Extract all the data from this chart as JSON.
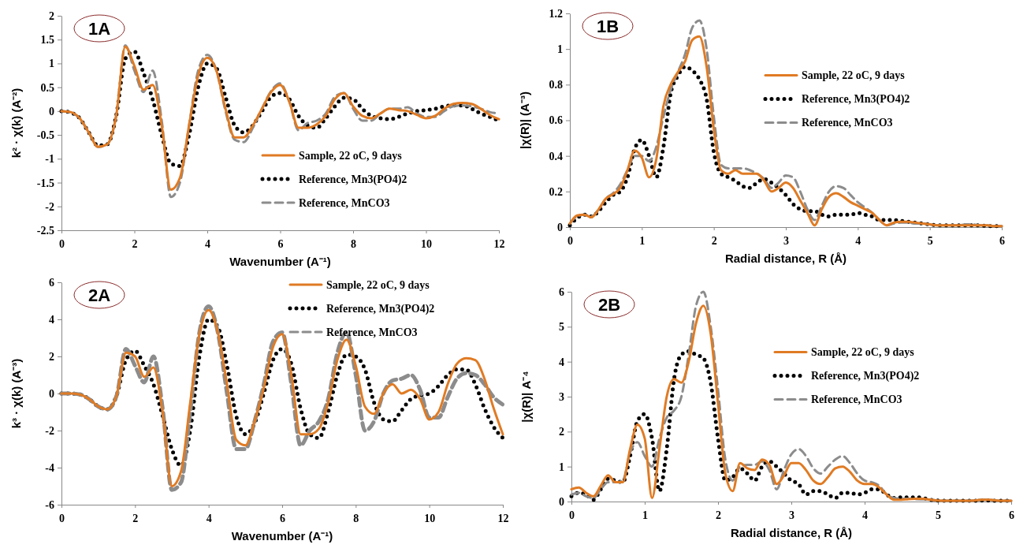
{
  "chart_data": [
    {
      "type": "line",
      "title": "1A",
      "xlabel": "Wavenumber (A⁻¹)",
      "ylabel": "k² · χ(k) (A⁻²)",
      "xlim": [
        0,
        12
      ],
      "xticks": [
        0,
        2,
        4,
        6,
        8,
        10,
        12
      ],
      "ylim": [
        -2.5,
        2
      ],
      "yticks": [
        -2.5,
        -2,
        -1.5,
        -1,
        -0.5,
        0,
        0.5,
        1,
        1.5,
        2
      ],
      "grid": false,
      "legend": "bottom right",
      "x": [
        0,
        0.25,
        0.5,
        0.75,
        1,
        1.25,
        1.5,
        1.75,
        2,
        2.25,
        2.5,
        2.75,
        3,
        3.25,
        3.5,
        3.75,
        4,
        4.25,
        4.5,
        4.75,
        5,
        5.25,
        5.5,
        5.75,
        6,
        6.25,
        6.5,
        6.75,
        7,
        7.25,
        7.5,
        7.75,
        8,
        8.25,
        8.5,
        8.75,
        9,
        9.25,
        9.5,
        9.75,
        10,
        10.25,
        10.5,
        10.75,
        11,
        11.25,
        11.5,
        11.75,
        12
      ],
      "series": [
        {
          "name": "Sample, 22 oC, 9 days",
          "color": "#e07b24",
          "line_style": "solid",
          "values": [
            0,
            -0.02,
            -0.15,
            -0.45,
            -0.75,
            -0.7,
            -0.1,
            1.35,
            0.95,
            0.45,
            0.55,
            -0.3,
            -1.65,
            -1.4,
            -0.3,
            0.75,
            1.12,
            0.85,
            0.05,
            -0.55,
            -0.55,
            -0.3,
            0.05,
            0.4,
            0.55,
            0.2,
            -0.35,
            -0.35,
            -0.28,
            -0.1,
            0.25,
            0.38,
            0.1,
            -0.1,
            -0.15,
            -0.05,
            0.05,
            0.02,
            0,
            -0.08,
            -0.15,
            -0.1,
            0.05,
            0.15,
            0.17,
            0.15,
            0.05,
            -0.08,
            -0.17
          ]
        },
        {
          "name": "Reference, Mn3(PO4)2",
          "color": "#000000",
          "line_style": "dotted",
          "values": [
            0,
            -0.03,
            -0.15,
            -0.45,
            -0.72,
            -0.7,
            -0.1,
            1.1,
            1.25,
            0.8,
            0.25,
            -0.5,
            -1.1,
            -1.15,
            -0.5,
            0.5,
            1,
            0.9,
            0.3,
            -0.3,
            -0.45,
            -0.3,
            0,
            0.3,
            0.38,
            0.25,
            -0.1,
            -0.3,
            -0.35,
            -0.15,
            0.1,
            0.28,
            0.25,
            0.05,
            -0.1,
            -0.15,
            -0.17,
            -0.12,
            -0.05,
            0,
            0.02,
            0.05,
            0.1,
            0.12,
            0.12,
            0.05,
            -0.05,
            -0.12,
            -0.2
          ]
        },
        {
          "name": "Reference, MnCO3",
          "color": "#8c8c8c",
          "line_style": "dashed",
          "values": [
            0,
            -0.03,
            -0.15,
            -0.45,
            -0.75,
            -0.7,
            -0.1,
            1.38,
            0.85,
            0.4,
            0.85,
            -0.2,
            -1.8,
            -1.5,
            -0.3,
            0.85,
            1.18,
            0.85,
            0,
            -0.6,
            -0.65,
            -0.35,
            0.05,
            0.42,
            0.58,
            0.2,
            -0.4,
            -0.25,
            -0.2,
            -0.05,
            0.3,
            0.38,
            0.05,
            -0.2,
            -0.2,
            -0.05,
            0.05,
            0.05,
            0.08,
            -0.05,
            -0.12,
            -0.12,
            0,
            0.1,
            0.12,
            0.1,
            0.05,
            -0.02,
            -0.05
          ]
        }
      ]
    },
    {
      "type": "line",
      "title": "1B",
      "xlabel": "Radial distance, R (Å)",
      "ylabel": "|χ(R)| (A⁻³)",
      "xlim": [
        0,
        6
      ],
      "xticks": [
        0,
        1,
        2,
        3,
        4,
        5,
        6
      ],
      "ylim": [
        0,
        1.2
      ],
      "yticks": [
        0,
        0.2,
        0.4,
        0.6,
        0.8,
        1,
        1.2
      ],
      "grid": false,
      "legend": "right",
      "x": [
        0,
        0.1,
        0.2,
        0.3,
        0.4,
        0.5,
        0.6,
        0.7,
        0.8,
        0.9,
        1,
        1.1,
        1.2,
        1.3,
        1.4,
        1.5,
        1.6,
        1.7,
        1.8,
        1.9,
        2,
        2.1,
        2.2,
        2.3,
        2.4,
        2.5,
        2.6,
        2.7,
        2.8,
        2.9,
        3,
        3.1,
        3.2,
        3.3,
        3.4,
        3.5,
        3.6,
        3.7,
        3.8,
        3.9,
        4,
        4.1,
        4.2,
        4.3,
        4.4,
        4.5,
        4.6,
        4.7,
        4.8,
        4.9,
        5,
        5.1,
        5.2,
        5.3,
        5.4,
        5.5,
        5.6,
        5.7,
        5.8,
        5.9,
        6
      ],
      "series": [
        {
          "name": "Sample, 22 oC, 9 days",
          "color": "#e07b24",
          "line_style": "solid",
          "values": [
            0.02,
            0.065,
            0.07,
            0.055,
            0.1,
            0.16,
            0.185,
            0.22,
            0.32,
            0.43,
            0.39,
            0.28,
            0.38,
            0.68,
            0.8,
            0.87,
            0.93,
            1.05,
            1.07,
            0.9,
            0.55,
            0.32,
            0.3,
            0.32,
            0.3,
            0.3,
            0.3,
            0.26,
            0.2,
            0.22,
            0.25,
            0.22,
            0.15,
            0.08,
            0.01,
            0.1,
            0.17,
            0.19,
            0.17,
            0.14,
            0.12,
            0.1,
            0.08,
            0.04,
            0.01,
            0.025,
            0.03,
            0.03,
            0.025,
            0.02,
            0.015,
            0.01,
            0.01,
            0.01,
            0.01,
            0.01,
            0.01,
            0.01,
            0.01,
            0.005,
            0.005
          ]
        },
        {
          "name": "Reference, Mn3(PO4)2",
          "color": "#000000",
          "line_style": "dotted",
          "values": [
            0.01,
            0.05,
            0.07,
            0.06,
            0.09,
            0.14,
            0.18,
            0.2,
            0.28,
            0.44,
            0.49,
            0.4,
            0.28,
            0.45,
            0.75,
            0.85,
            0.9,
            0.88,
            0.83,
            0.72,
            0.42,
            0.3,
            0.28,
            0.26,
            0.23,
            0.22,
            0.25,
            0.27,
            0.25,
            0.22,
            0.18,
            0.13,
            0.1,
            0.09,
            0.09,
            0.07,
            0.06,
            0.07,
            0.07,
            0.07,
            0.08,
            0.07,
            0.06,
            0.04,
            0.04,
            0.04,
            0.035,
            0.03,
            0.025,
            0.02,
            0.015,
            0.01,
            0.01,
            0.01,
            0.01,
            0.01,
            0.01,
            0.01,
            0.005,
            0.005,
            0.005
          ]
        },
        {
          "name": "Reference, MnCO3",
          "color": "#8c8c8c",
          "line_style": "dashed",
          "values": [
            0.02,
            0.06,
            0.07,
            0.06,
            0.1,
            0.16,
            0.19,
            0.24,
            0.32,
            0.4,
            0.4,
            0.37,
            0.45,
            0.62,
            0.77,
            0.87,
            0.97,
            1.12,
            1.16,
            1,
            0.62,
            0.35,
            0.33,
            0.33,
            0.33,
            0.32,
            0.3,
            0.27,
            0.22,
            0.25,
            0.29,
            0.28,
            0.2,
            0.1,
            0.04,
            0.12,
            0.2,
            0.23,
            0.22,
            0.18,
            0.14,
            0.11,
            0.08,
            0.04,
            0.01,
            0.02,
            0.025,
            0.025,
            0.02,
            0.02,
            0.015,
            0.01,
            0.01,
            0.01,
            0.01,
            0.015,
            0.015,
            0.01,
            0.01,
            0.005,
            0.005
          ]
        }
      ]
    },
    {
      "type": "line",
      "title": "2A",
      "xlabel": "Wavenumber (A⁻¹)",
      "ylabel": "k³ · χ(k) (A⁻³)",
      "xlim": [
        0,
        12
      ],
      "xticks": [
        0,
        2,
        4,
        6,
        8,
        10,
        12
      ],
      "ylim": [
        -6,
        6
      ],
      "yticks": [
        -6,
        -4,
        -2,
        0,
        2,
        4,
        6
      ],
      "grid": false,
      "legend": "top right",
      "x": [
        0,
        0.25,
        0.5,
        0.75,
        1,
        1.25,
        1.5,
        1.75,
        2,
        2.25,
        2.5,
        2.75,
        3,
        3.25,
        3.5,
        3.75,
        4,
        4.25,
        4.5,
        4.75,
        5,
        5.25,
        5.5,
        5.75,
        6,
        6.25,
        6.5,
        6.75,
        7,
        7.25,
        7.5,
        7.75,
        8,
        8.25,
        8.5,
        8.75,
        9,
        9.25,
        9.5,
        9.75,
        10,
        10.25,
        10.5,
        10.75,
        11,
        11.25,
        11.5,
        11.75,
        12
      ],
      "series": [
        {
          "name": "Sample, 22 oC, 9 days",
          "color": "#e07b24",
          "line_style": "solid",
          "values": [
            0,
            0,
            -0.05,
            -0.3,
            -0.7,
            -0.85,
            -0.1,
            2.2,
            2,
            0.9,
            1.4,
            -1,
            -5,
            -4.2,
            -0.5,
            3.2,
            4.5,
            3.3,
            0.5,
            -2.5,
            -2.8,
            -1.5,
            0.3,
            2.5,
            3.2,
            1,
            -2.2,
            -2.2,
            -1.9,
            -0.5,
            1.8,
            2.9,
            1.5,
            -0.7,
            -1.1,
            0,
            0.5,
            0,
            0.2,
            -0.3,
            -1.4,
            -1,
            0.5,
            1.6,
            1.9,
            1.8,
            0.8,
            -0.8,
            -2.2
          ]
        },
        {
          "name": "Reference, Mn3(PO4)2",
          "color": "#000000",
          "line_style": "dotted",
          "values": [
            0,
            0,
            -0.05,
            -0.3,
            -0.7,
            -0.85,
            -0.1,
            1.8,
            2.3,
            1.5,
            0.5,
            -1.2,
            -3,
            -3.9,
            -2,
            2,
            4,
            3.6,
            1.5,
            -1.2,
            -2.2,
            -1.6,
            0,
            1.8,
            2.4,
            1.6,
            -0.8,
            -2.2,
            -2.4,
            -1,
            1,
            2.1,
            2,
            1.3,
            -0.5,
            -1.4,
            -1.5,
            -0.9,
            -0.3,
            -0.1,
            0,
            0.4,
            1,
            1.3,
            1.3,
            0.5,
            -0.8,
            -1.8,
            -2.4
          ]
        },
        {
          "name": "Reference, MnCO3",
          "color": "#8c8c8c",
          "line_style": "dashed",
          "values": [
            0,
            0,
            -0.05,
            -0.3,
            -0.7,
            -0.85,
            -0.1,
            2.4,
            1.5,
            0.6,
            2,
            -0.8,
            -5.2,
            -4.8,
            -1,
            3.3,
            4.7,
            3.3,
            0,
            -3,
            -3,
            -1.5,
            0.5,
            2.8,
            3.3,
            0.5,
            -2.8,
            -2,
            -1.5,
            -0.3,
            2.2,
            3.3,
            1,
            -2,
            -1.5,
            0,
            0.7,
            0.8,
            1,
            0.2,
            -1.3,
            -1.3,
            -0.2,
            0.8,
            1.1,
            1,
            0.5,
            -0.2,
            -0.6
          ]
        }
      ]
    },
    {
      "type": "line",
      "title": "2B",
      "xlabel": "Radial distance, R (Å)",
      "ylabel": "|χ(R)| A⁻⁴",
      "xlim": [
        0,
        6
      ],
      "xticks": [
        0,
        1,
        2,
        3,
        4,
        5,
        6
      ],
      "ylim": [
        0,
        6
      ],
      "yticks": [
        0,
        1,
        2,
        3,
        4,
        5,
        6
      ],
      "grid": false,
      "legend": "right",
      "x": [
        0,
        0.1,
        0.2,
        0.3,
        0.4,
        0.5,
        0.6,
        0.7,
        0.8,
        0.9,
        1,
        1.1,
        1.2,
        1.3,
        1.4,
        1.5,
        1.6,
        1.7,
        1.8,
        1.9,
        2,
        2.1,
        2.2,
        2.3,
        2.4,
        2.5,
        2.6,
        2.7,
        2.8,
        2.9,
        3,
        3.1,
        3.2,
        3.3,
        3.4,
        3.5,
        3.6,
        3.7,
        3.8,
        3.9,
        4,
        4.1,
        4.2,
        4.3,
        4.4,
        4.5,
        4.6,
        4.7,
        4.8,
        4.9,
        5,
        5.1,
        5.2,
        5.3,
        5.4,
        5.5,
        5.6,
        5.7,
        5.8,
        5.9,
        6
      ],
      "series": [
        {
          "name": "Sample, 22 oC, 9 days",
          "color": "#e07b24",
          "line_style": "solid",
          "values": [
            0.35,
            0.4,
            0.25,
            0.15,
            0.45,
            0.75,
            0.55,
            0.55,
            1.5,
            2.2,
            1.8,
            0.1,
            1.5,
            3,
            3.5,
            3.4,
            4,
            5.1,
            5.6,
            4.8,
            2.8,
            0.8,
            0.3,
            1.1,
            0.95,
            0.9,
            1.2,
            1.05,
            0.5,
            0.75,
            1.1,
            1.1,
            0.9,
            0.6,
            0.5,
            0.7,
            0.95,
            1,
            0.85,
            0.6,
            0.5,
            0.5,
            0.4,
            0.2,
            0.05,
            0.05,
            0.07,
            0.08,
            0.08,
            0.05,
            0.03,
            0.02,
            0.02,
            0.02,
            0.02,
            0.03,
            0.05,
            0.05,
            0.03,
            0.02,
            0.02
          ]
        },
        {
          "name": "Reference, Mn3(PO4)2",
          "color": "#000000",
          "line_style": "dotted",
          "values": [
            0.15,
            0.25,
            0.2,
            0.05,
            0.35,
            0.65,
            0.6,
            0.55,
            1.3,
            2.3,
            2.5,
            1.8,
            0.3,
            1.5,
            3.5,
            4.2,
            4.3,
            4.2,
            4.1,
            3.4,
            1.8,
            0.6,
            0.7,
            0.95,
            0.8,
            0.6,
            1,
            1.15,
            1,
            0.8,
            0.6,
            0.5,
            0.2,
            0.3,
            0.3,
            0.2,
            0.1,
            0.25,
            0.25,
            0.2,
            0.25,
            0.35,
            0.35,
            0.2,
            0.1,
            0.12,
            0.12,
            0.12,
            0.1,
            0.05,
            0.03,
            0.02,
            0.02,
            0.02,
            0.02,
            0.02,
            0.03,
            0.03,
            0.02,
            0.02,
            0.02
          ]
        },
        {
          "name": "Reference, MnCO3",
          "color": "#8c8c8c",
          "line_style": "dashed",
          "values": [
            0.2,
            0.25,
            0.15,
            0.1,
            0.35,
            0.55,
            0.55,
            0.6,
            1.4,
            1.7,
            1.3,
            1,
            1.8,
            2.4,
            2.6,
            3,
            4.2,
            5.6,
            6,
            5,
            3.2,
            1.2,
            0.6,
            1,
            1.05,
            1.05,
            1.15,
            0.9,
            0.35,
            0.9,
            1.35,
            1.5,
            1.3,
            0.95,
            0.8,
            1,
            1.2,
            1.3,
            1.1,
            0.8,
            0.6,
            0.55,
            0.45,
            0.2,
            0.1,
            0.08,
            0.08,
            0.07,
            0.06,
            0.05,
            0.03,
            0.02,
            0.02,
            0.02,
            0.02,
            0.03,
            0.05,
            0.05,
            0.03,
            0.02,
            0.02
          ]
        }
      ]
    }
  ]
}
